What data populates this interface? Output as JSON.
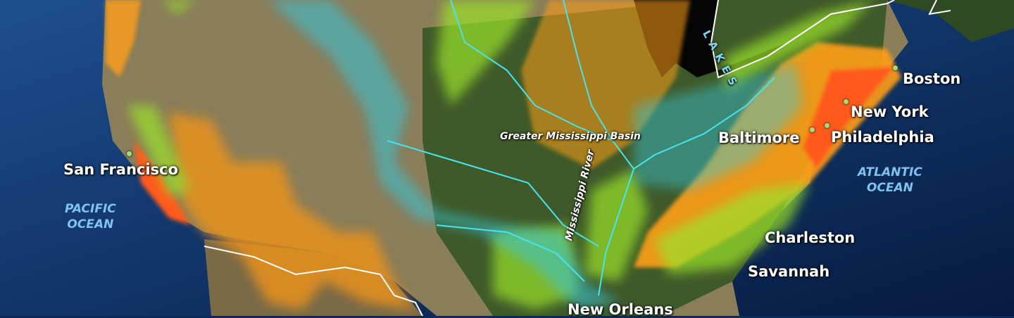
{
  "map": {
    "cities": {
      "boston": "Boston",
      "new_york": "New York",
      "philadelphia": "Philadelphia",
      "baltimore": "Baltimore",
      "charleston": "Charleston",
      "savannah": "Savannah",
      "new_orleans": "New Orleans",
      "san_francisco": "San Francisco"
    },
    "oceans": {
      "atlantic_line1": "ATLANTIC",
      "atlantic_line2": "OCEAN",
      "pacific_line1": "PACIFIC",
      "pacific_line2": "OCEAN"
    },
    "features": {
      "basin": "Greater Mississippi Basin",
      "river": "Mississippi River",
      "lakes": "LAKES"
    },
    "colors": {
      "ocean": "#0b2a5a",
      "land": "#8a7d5a",
      "forest": "#3f5a2a",
      "high_impact": "#ff5a1a",
      "medium_impact": "#ff9f1a",
      "green_zone": "#9be22a",
      "river_zone": "#39c6d8",
      "desert_zone": "#e8921e"
    }
  }
}
